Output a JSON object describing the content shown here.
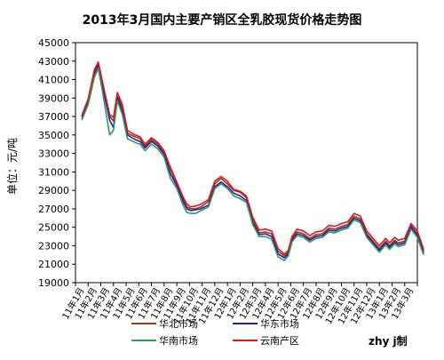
{
  "chart_data": {
    "type": "line",
    "title": "2013年3月国内主要产销区全乳胶现货价格走势图",
    "ylabel": "单位：元/吨",
    "xlabel": "",
    "ylim": [
      19000,
      45000
    ],
    "yticks": [
      19000,
      21000,
      23000,
      25000,
      27000,
      29000,
      31000,
      33000,
      35000,
      37000,
      39000,
      41000,
      43000,
      45000
    ],
    "categories": [
      "11年1月",
      "11年2月",
      "11年3月",
      "11年4月",
      "11年5月",
      "11年6月",
      "11年7月",
      "11年8月",
      "11年9月",
      "11年10月",
      "11年11月",
      "11年12月",
      "12年1月",
      "12年2月",
      "12年3月",
      "12年4月",
      "12年5月",
      "12年6月",
      "12年7月",
      "12年8月",
      "12年9月",
      "12年10月",
      "12年11月",
      "12年12月",
      "13年1月",
      "13年2月",
      "13年3月"
    ],
    "x": [
      0,
      0.5,
      1,
      1.3,
      1.6,
      2.2,
      2.5,
      2.8,
      3.2,
      3.6,
      4.2,
      4.6,
      5,
      5.5,
      6,
      6.5,
      7,
      7.5,
      8,
      8.3,
      8.6,
      9,
      9.4,
      10,
      10.5,
      11,
      11.5,
      12,
      12.5,
      13,
      13.5,
      14,
      14.5,
      15,
      15.5,
      16,
      16.3,
      16.6,
      17,
      17.5,
      18,
      18.5,
      19,
      19.5,
      20,
      20.5,
      21,
      21.5,
      22,
      22.5,
      23,
      23.5,
      24,
      24.3,
      24.7,
      25,
      25.5,
      26,
      26.5,
      27
    ],
    "gridlines": false,
    "legend_position": "bottom",
    "series": [
      {
        "name": "华北市场",
        "color": "#9c3a12",
        "values": [
          36800,
          38500,
          41500,
          42600,
          40800,
          37000,
          36500,
          39200,
          38000,
          35200,
          34800,
          34600,
          33800,
          34500,
          34000,
          33100,
          31300,
          29700,
          28100,
          27200,
          27000,
          27000,
          27200,
          27800,
          29700,
          30300,
          29700,
          29000,
          28800,
          28200,
          25800,
          24400,
          24500,
          24300,
          22400,
          21900,
          22300,
          23800,
          24500,
          24300,
          23800,
          24200,
          24300,
          24900,
          24800,
          25100,
          25300,
          26200,
          25900,
          24300,
          23500,
          22700,
          23500,
          23000,
          23600,
          23300,
          23500,
          25200,
          24300,
          22400
        ]
      },
      {
        "name": "华东市场",
        "color": "#2020b8",
        "values": [
          37000,
          38700,
          41800,
          42700,
          40500,
          36600,
          35800,
          39100,
          37500,
          35000,
          34500,
          34300,
          33600,
          34300,
          33800,
          32900,
          30800,
          29500,
          27800,
          27000,
          26800,
          26900,
          27000,
          27400,
          29400,
          29900,
          29400,
          28700,
          28400,
          27900,
          25500,
          24200,
          24300,
          24000,
          22100,
          21700,
          22100,
          23600,
          24300,
          24100,
          23600,
          24000,
          24100,
          24700,
          24600,
          24900,
          25100,
          26000,
          25700,
          24100,
          23300,
          22500,
          23300,
          22800,
          23400,
          23100,
          23300,
          25000,
          24100,
          22200
        ]
      },
      {
        "name": "华南市场",
        "color": "#2e9b5a",
        "values": [
          36600,
          38300,
          41300,
          42200,
          40000,
          35000,
          35500,
          38700,
          37200,
          34600,
          34200,
          34000,
          33300,
          34000,
          33500,
          32600,
          30300,
          29200,
          27400,
          26600,
          26500,
          26500,
          26800,
          27200,
          29200,
          29700,
          29200,
          28400,
          28100,
          27700,
          25300,
          24000,
          24000,
          23700,
          21800,
          21400,
          21900,
          23400,
          24100,
          23900,
          23400,
          23800,
          23900,
          24500,
          24400,
          24700,
          24900,
          25800,
          25500,
          23900,
          23100,
          22300,
          23100,
          22600,
          23200,
          22900,
          23100,
          24800,
          23900,
          22000
        ]
      },
      {
        "name": "云南产区",
        "color": "#e01818",
        "values": [
          37100,
          38900,
          42100,
          42900,
          41000,
          37200,
          36900,
          39600,
          38300,
          35500,
          35000,
          34800,
          34000,
          34700,
          34200,
          33300,
          31500,
          29900,
          28300,
          27500,
          27200,
          27300,
          27500,
          28000,
          30000,
          30500,
          30000,
          29100,
          28900,
          28400,
          26100,
          24700,
          24800,
          24600,
          22700,
          22100,
          22500,
          24000,
          24800,
          24600,
          24100,
          24500,
          24600,
          25200,
          25100,
          25400,
          25600,
          26500,
          26200,
          24600,
          23800,
          23000,
          23800,
          23300,
          23900,
          23600,
          23800,
          25400,
          24600,
          22600
        ]
      }
    ],
    "credit": "zhy j制"
  }
}
